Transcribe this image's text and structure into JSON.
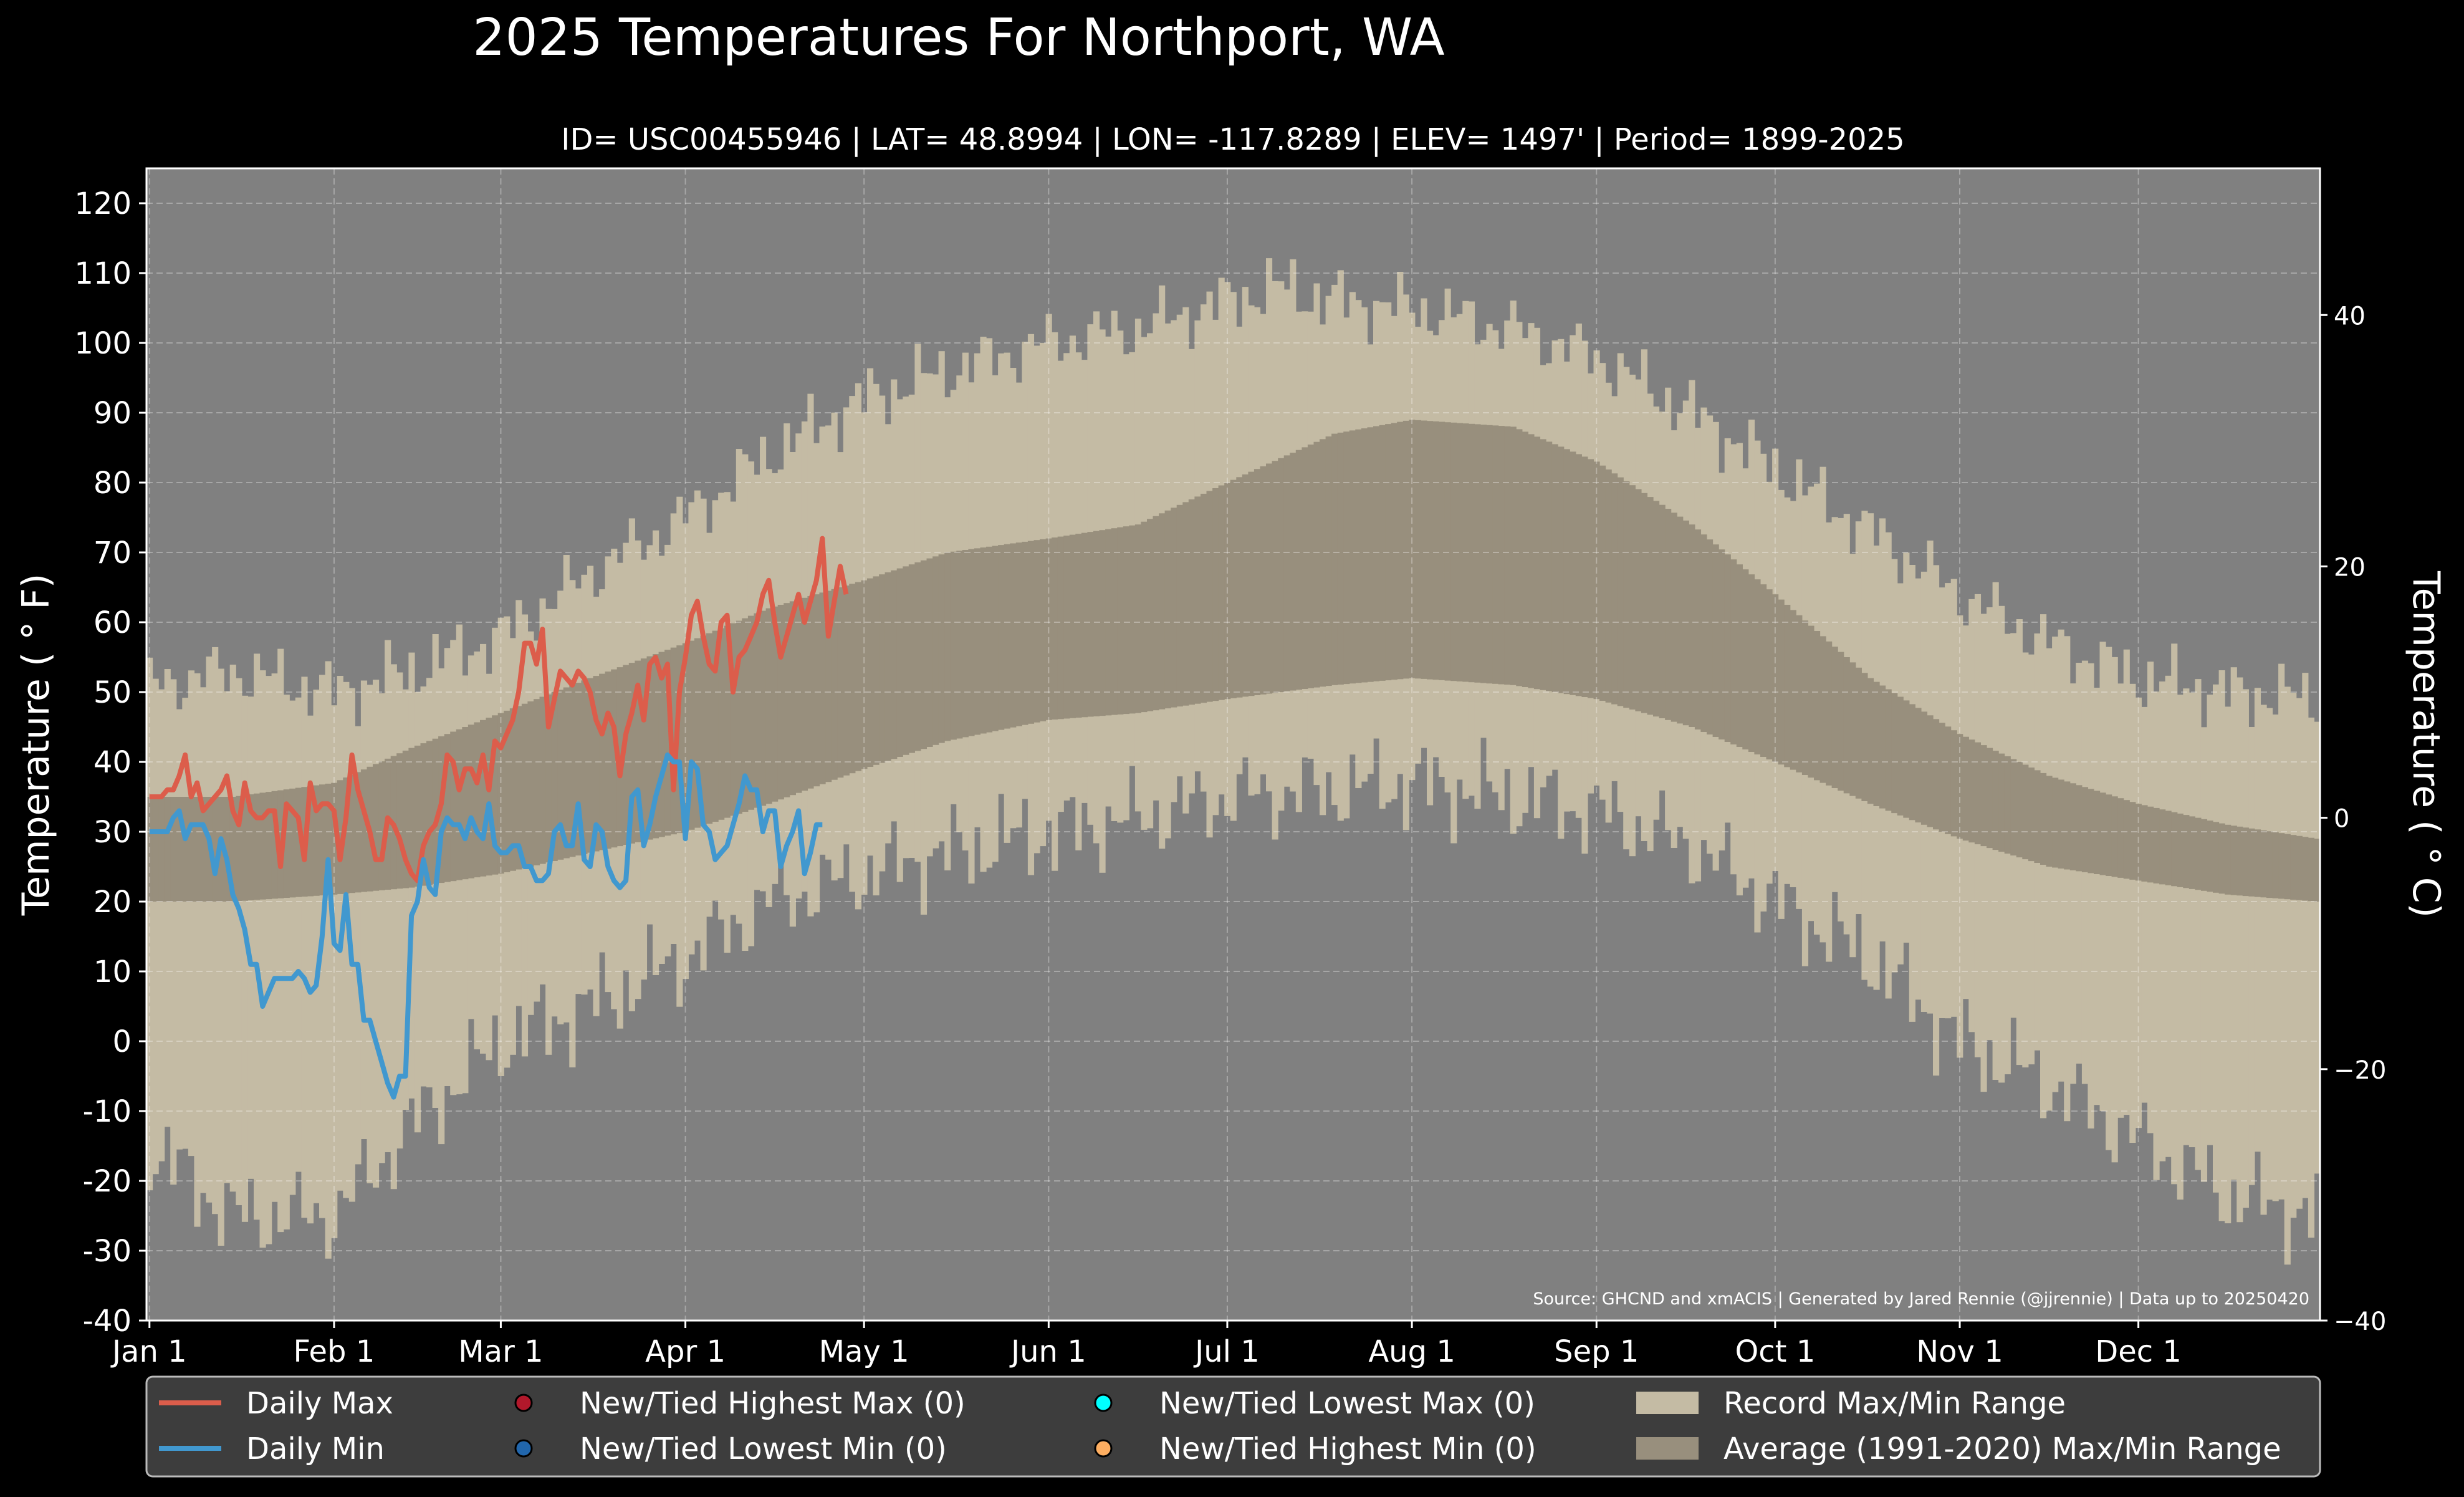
{
  "chart_data": {
    "type": "line",
    "title": "2025 Temperatures For Northport, WA",
    "subtitle": "ID= USC00455946 | LAT= 48.8994 | LON= -117.8289 | ELEV= 1497' | Period= 1899-2025",
    "ylabel": "Temperature ( ° F)",
    "ylabel_right": "Temperature ( ° C)",
    "source": "Source: GHCND and xmACIS | Generated by Jared Rennie (@jjrennie) | Data up to 20250420",
    "ylim": [
      -40,
      125
    ],
    "ylim_right": [
      -40,
      51.67
    ],
    "yticks": [
      -40,
      -30,
      -20,
      -10,
      0,
      10,
      20,
      30,
      40,
      50,
      60,
      70,
      80,
      90,
      100,
      110,
      120
    ],
    "yticks_right": [
      -40,
      -20,
      0,
      20,
      40
    ],
    "x_unit": "day of year",
    "xlim": [
      -0.5,
      364.5
    ],
    "xtick_labels": [
      "Jan 1",
      "Feb 1",
      "Mar 1",
      "Apr 1",
      "May 1",
      "Jun 1",
      "Jul 1",
      "Aug 1",
      "Sep 1",
      "Oct 1",
      "Nov 1",
      "Dec 1"
    ],
    "xtick_days": [
      1,
      32,
      60,
      91,
      121,
      152,
      182,
      213,
      244,
      274,
      305,
      335
    ],
    "grid": true,
    "legend_placement": "bottom",
    "colors": {
      "background": "#000000",
      "plot_background": "#808080",
      "record_range": "#c4bba4",
      "normal_range": "#988f7d",
      "daily_max": "#dc5d4b",
      "daily_min": "#4198cf",
      "new_high_max": "#b2182b",
      "new_low_min": "#2166ac",
      "new_low_max": "#00ffff",
      "new_high_min": "#fdae61",
      "legend_bg": "#3d3d3d"
    },
    "record_max_anchors": {
      "day": [
        1,
        15,
        32,
        45,
        60,
        75,
        91,
        105,
        121,
        135,
        152,
        167,
        182,
        190,
        200,
        213,
        230,
        244,
        260,
        274,
        290,
        305,
        320,
        335,
        350,
        365
      ],
      "value": [
        51,
        53,
        50,
        53,
        58,
        67,
        75,
        84,
        92,
        96,
        100,
        102,
        106,
        108,
        106,
        105,
        102,
        98,
        90,
        82,
        73,
        64,
        57,
        52,
        50,
        49
      ]
    },
    "record_min_anchors": {
      "day": [
        1,
        15,
        32,
        45,
        60,
        75,
        91,
        105,
        121,
        135,
        152,
        167,
        182,
        200,
        213,
        230,
        244,
        260,
        274,
        290,
        305,
        320,
        335,
        350,
        365
      ],
      "value": [
        -15,
        -25,
        -25,
        -12,
        0,
        5,
        12,
        20,
        24,
        27,
        30,
        32,
        35,
        36,
        37,
        35,
        33,
        28,
        20,
        12,
        0,
        -6,
        -14,
        -22,
        -25
      ]
    },
    "normal_max_anchors": {
      "day": [
        1,
        15,
        32,
        45,
        60,
        75,
        91,
        105,
        121,
        135,
        152,
        167,
        182,
        200,
        213,
        230,
        244,
        260,
        274,
        290,
        305,
        320,
        335,
        350,
        365
      ],
      "value": [
        35,
        35,
        37,
        42,
        47,
        52,
        57,
        62,
        66,
        70,
        72,
        74,
        80,
        87,
        89,
        88,
        83,
        74,
        64,
        52,
        44,
        38,
        34,
        31,
        29
      ]
    },
    "normal_min_anchors": {
      "day": [
        1,
        15,
        32,
        45,
        60,
        75,
        91,
        105,
        121,
        135,
        152,
        167,
        182,
        200,
        213,
        230,
        244,
        260,
        274,
        290,
        305,
        320,
        335,
        350,
        365
      ],
      "value": [
        20,
        20,
        21,
        22,
        24,
        27,
        30,
        34,
        39,
        43,
        46,
        47,
        49,
        51,
        52,
        51,
        49,
        45,
        40,
        34,
        29,
        25,
        23,
        21,
        20
      ]
    },
    "series": [
      {
        "name": "Daily Max",
        "start_day": 1,
        "values": [
          35,
          35,
          35,
          36,
          36,
          38,
          41,
          35,
          37,
          33,
          34,
          35,
          36,
          38,
          33,
          31,
          37,
          33,
          32,
          32,
          33,
          33,
          25,
          34,
          33,
          32,
          26,
          37,
          33,
          34,
          34,
          33,
          26,
          32,
          41,
          36,
          33,
          30,
          26,
          26,
          32,
          31,
          29,
          26,
          24,
          23,
          28,
          30,
          31,
          34,
          41,
          40,
          36,
          39,
          39,
          37,
          41,
          36,
          43,
          42,
          44,
          46,
          50,
          57,
          57,
          54,
          59,
          45,
          49,
          53,
          52,
          51,
          53,
          52,
          50,
          46,
          44,
          47,
          45,
          38,
          44,
          47,
          51,
          46,
          54,
          55,
          52,
          54,
          36,
          50,
          55,
          61,
          63,
          58,
          54,
          53,
          60,
          61,
          50,
          55,
          56,
          58,
          60,
          64,
          66,
          60,
          55,
          58,
          61,
          64,
          60,
          63,
          66,
          72,
          58,
          63,
          68,
          64
        ]
      },
      {
        "name": "Daily Min",
        "start_day": 1,
        "values": [
          30,
          30,
          30,
          30,
          32,
          33,
          29,
          31,
          31,
          31,
          29,
          24,
          29,
          26,
          21,
          19,
          16,
          11,
          11,
          5,
          7,
          9,
          9,
          9,
          9,
          10,
          9,
          7,
          8,
          15,
          26,
          14,
          13,
          21,
          11,
          11,
          3,
          3,
          0,
          -3,
          -6,
          -8,
          -5,
          -5,
          18,
          20,
          26,
          22,
          21,
          30,
          32,
          31,
          31,
          29,
          32,
          30,
          29,
          34,
          28,
          27,
          27,
          28,
          28,
          25,
          25,
          23,
          23,
          24,
          30,
          31,
          28,
          28,
          34,
          26,
          25,
          31,
          30,
          25,
          23,
          22,
          23,
          35,
          36,
          28,
          31,
          35,
          38,
          41,
          40,
          40,
          29,
          40,
          39,
          31,
          30,
          26,
          27,
          28,
          31,
          34,
          38,
          36,
          36,
          30,
          33,
          33,
          25,
          28,
          30,
          33,
          24,
          27,
          31,
          31
        ]
      }
    ],
    "legend": [
      {
        "label": "Daily Max",
        "kind": "line",
        "color": "#dc5d4b"
      },
      {
        "label": "Daily Min",
        "kind": "line",
        "color": "#4198cf"
      },
      {
        "label": "New/Tied Highest Max (0)",
        "kind": "dot",
        "color": "#b2182b"
      },
      {
        "label": "New/Tied Lowest Min (0)",
        "kind": "dot",
        "color": "#2166ac"
      },
      {
        "label": "New/Tied Lowest Max (0)",
        "kind": "dot",
        "color": "#00ffff"
      },
      {
        "label": "New/Tied Highest Min (0)",
        "kind": "dot",
        "color": "#fdae61"
      },
      {
        "label": "Record Max/Min Range",
        "kind": "patch",
        "color": "#c4bba4"
      },
      {
        "label": "Average (1991-2020) Max/Min Range",
        "kind": "patch",
        "color": "#988f7d"
      }
    ]
  }
}
